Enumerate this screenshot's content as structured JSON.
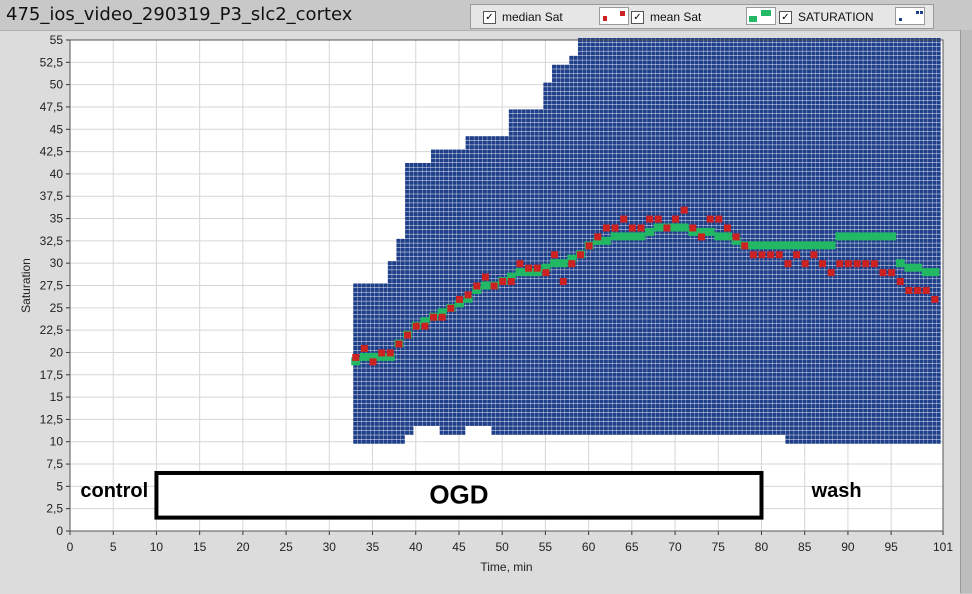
{
  "window": {
    "title": "475_ios_video_290319_P3_slc2_cortex"
  },
  "legend": [
    {
      "label": "median Sat",
      "checked": true,
      "check": "✓",
      "color": "#cc2222"
    },
    {
      "label": "mean Sat",
      "checked": true,
      "check": "✓",
      "color": "#22b864"
    },
    {
      "label": "SATURATION",
      "checked": true,
      "check": "✓",
      "color": "#1f3f8a"
    }
  ],
  "annotations": {
    "control": "control",
    "ogd": "OGD",
    "wash": "wash"
  },
  "chart_data": {
    "type": "scatter",
    "title": "",
    "xlabel": "Time, min",
    "ylabel": "Saturation",
    "xlim": [
      0,
      101
    ],
    "ylim": [
      0,
      55
    ],
    "x_ticks": [
      "0",
      "5",
      "10",
      "15",
      "20",
      "25",
      "30",
      "35",
      "40",
      "45",
      "50",
      "55",
      "60",
      "65",
      "70",
      "75",
      "80",
      "85",
      "90",
      "95",
      "101"
    ],
    "x_tick_values": [
      0,
      5,
      10,
      15,
      20,
      25,
      30,
      35,
      40,
      45,
      50,
      55,
      60,
      65,
      70,
      75,
      80,
      85,
      90,
      95,
      101
    ],
    "y_ticks": [
      "0",
      "2,5",
      "5",
      "7,5",
      "10",
      "12,5",
      "15",
      "17,5",
      "20",
      "22,5",
      "25",
      "27,5",
      "30",
      "32,5",
      "35",
      "37,5",
      "40",
      "42,5",
      "45",
      "47,5",
      "50",
      "52,5",
      "55"
    ],
    "y_tick_values": [
      0,
      2.5,
      5,
      7.5,
      10,
      12.5,
      15,
      17.5,
      20,
      22.5,
      25,
      27.5,
      30,
      32.5,
      35,
      37.5,
      40,
      42.5,
      45,
      47.5,
      50,
      52.5,
      55
    ],
    "grid": true,
    "legend_position": "top-right",
    "ogd_period": [
      10,
      80
    ],
    "series": [
      {
        "name": "median Sat",
        "color": "#cc2222",
        "x": [
          33,
          34,
          35,
          36,
          37,
          38,
          39,
          40,
          41,
          42,
          43,
          44,
          45,
          46,
          47,
          48,
          49,
          50,
          51,
          52,
          53,
          54,
          55,
          56,
          57,
          58,
          59,
          60,
          61,
          62,
          63,
          64,
          65,
          66,
          67,
          68,
          69,
          70,
          71,
          72,
          73,
          74,
          75,
          76,
          77,
          78,
          79,
          80,
          81,
          82,
          83,
          84,
          85,
          86,
          87,
          88,
          89,
          90,
          91,
          92,
          93,
          94,
          95,
          96,
          97,
          98,
          99,
          100
        ],
        "y": [
          19.5,
          20.5,
          19,
          20,
          20,
          21,
          22,
          23,
          23,
          24,
          24,
          25,
          26,
          26.5,
          27.5,
          28.5,
          27.5,
          28,
          28,
          30,
          29.5,
          29.5,
          29,
          31,
          28,
          30,
          31,
          32,
          33,
          34,
          34,
          35,
          34,
          34,
          35,
          35,
          34,
          35,
          36,
          34,
          33,
          35,
          35,
          34,
          33,
          32,
          31,
          31,
          31,
          31,
          30,
          31,
          30,
          31,
          30,
          29,
          30,
          30,
          30,
          30,
          30,
          29,
          29,
          28,
          27,
          27,
          27,
          26
        ]
      },
      {
        "name": "mean Sat",
        "color": "#22b864",
        "x": [
          33,
          34,
          35,
          36,
          37,
          38,
          39,
          40,
          41,
          42,
          43,
          44,
          45,
          46,
          47,
          48,
          49,
          50,
          51,
          52,
          53,
          54,
          55,
          56,
          57,
          58,
          59,
          60,
          61,
          62,
          63,
          64,
          65,
          66,
          67,
          68,
          69,
          70,
          71,
          72,
          73,
          74,
          75,
          76,
          77,
          78,
          79,
          80,
          81,
          82,
          83,
          84,
          85,
          86,
          87,
          88,
          89,
          90,
          91,
          92,
          93,
          94,
          95,
          96,
          97,
          98,
          99,
          100
        ],
        "y": [
          19,
          19.5,
          19.5,
          19.5,
          19.5,
          21,
          22,
          23,
          23.5,
          24,
          24.5,
          25,
          25.5,
          26,
          27,
          27.5,
          27.5,
          28,
          28.5,
          29,
          29,
          29,
          29.5,
          30,
          30,
          30.5,
          31,
          32,
          32.5,
          32.5,
          33,
          33,
          33,
          33,
          33.5,
          34,
          34,
          34,
          34,
          33.5,
          33.5,
          33.5,
          33,
          33,
          32.5,
          32,
          32,
          32,
          32,
          32,
          32,
          32,
          32,
          32,
          32,
          32,
          33,
          33,
          33,
          33,
          33,
          33,
          33,
          30,
          29.5,
          29.5,
          29,
          29
        ]
      },
      {
        "name": "SATURATION",
        "color": "#1f3f8a",
        "x_range": [
          33,
          100
        ],
        "y_min": [
          10,
          10,
          10,
          10,
          10,
          10,
          11,
          12,
          12,
          12,
          11,
          11,
          11,
          12,
          12,
          12,
          11,
          11,
          11,
          11,
          11,
          11,
          11,
          11,
          11,
          11,
          11,
          11,
          11,
          11,
          11,
          11,
          11,
          11,
          11,
          11,
          11,
          11,
          11,
          11,
          11,
          11,
          11,
          11,
          11,
          11,
          11,
          11,
          11,
          11,
          10,
          10,
          10,
          10,
          10,
          10,
          10,
          10,
          10,
          10,
          10,
          10,
          10,
          10,
          10,
          10,
          10,
          10
        ],
        "y_max": [
          27.5,
          27.5,
          27.5,
          27.5,
          30,
          32.5,
          41,
          41,
          41,
          42.5,
          42.5,
          42.5,
          42.5,
          44,
          44,
          44,
          44,
          44,
          47,
          47,
          47,
          47,
          50,
          52,
          52,
          53,
          55,
          55,
          55,
          55,
          55,
          55,
          55,
          55,
          55,
          55,
          55,
          55,
          55,
          55,
          55,
          55,
          55,
          55,
          55,
          55,
          55,
          55,
          55,
          55,
          55,
          55,
          55,
          55,
          55,
          55,
          55,
          55,
          55,
          55,
          55,
          55,
          55,
          55,
          55,
          55,
          55,
          55
        ],
        "y_step": 0.5
      }
    ]
  }
}
